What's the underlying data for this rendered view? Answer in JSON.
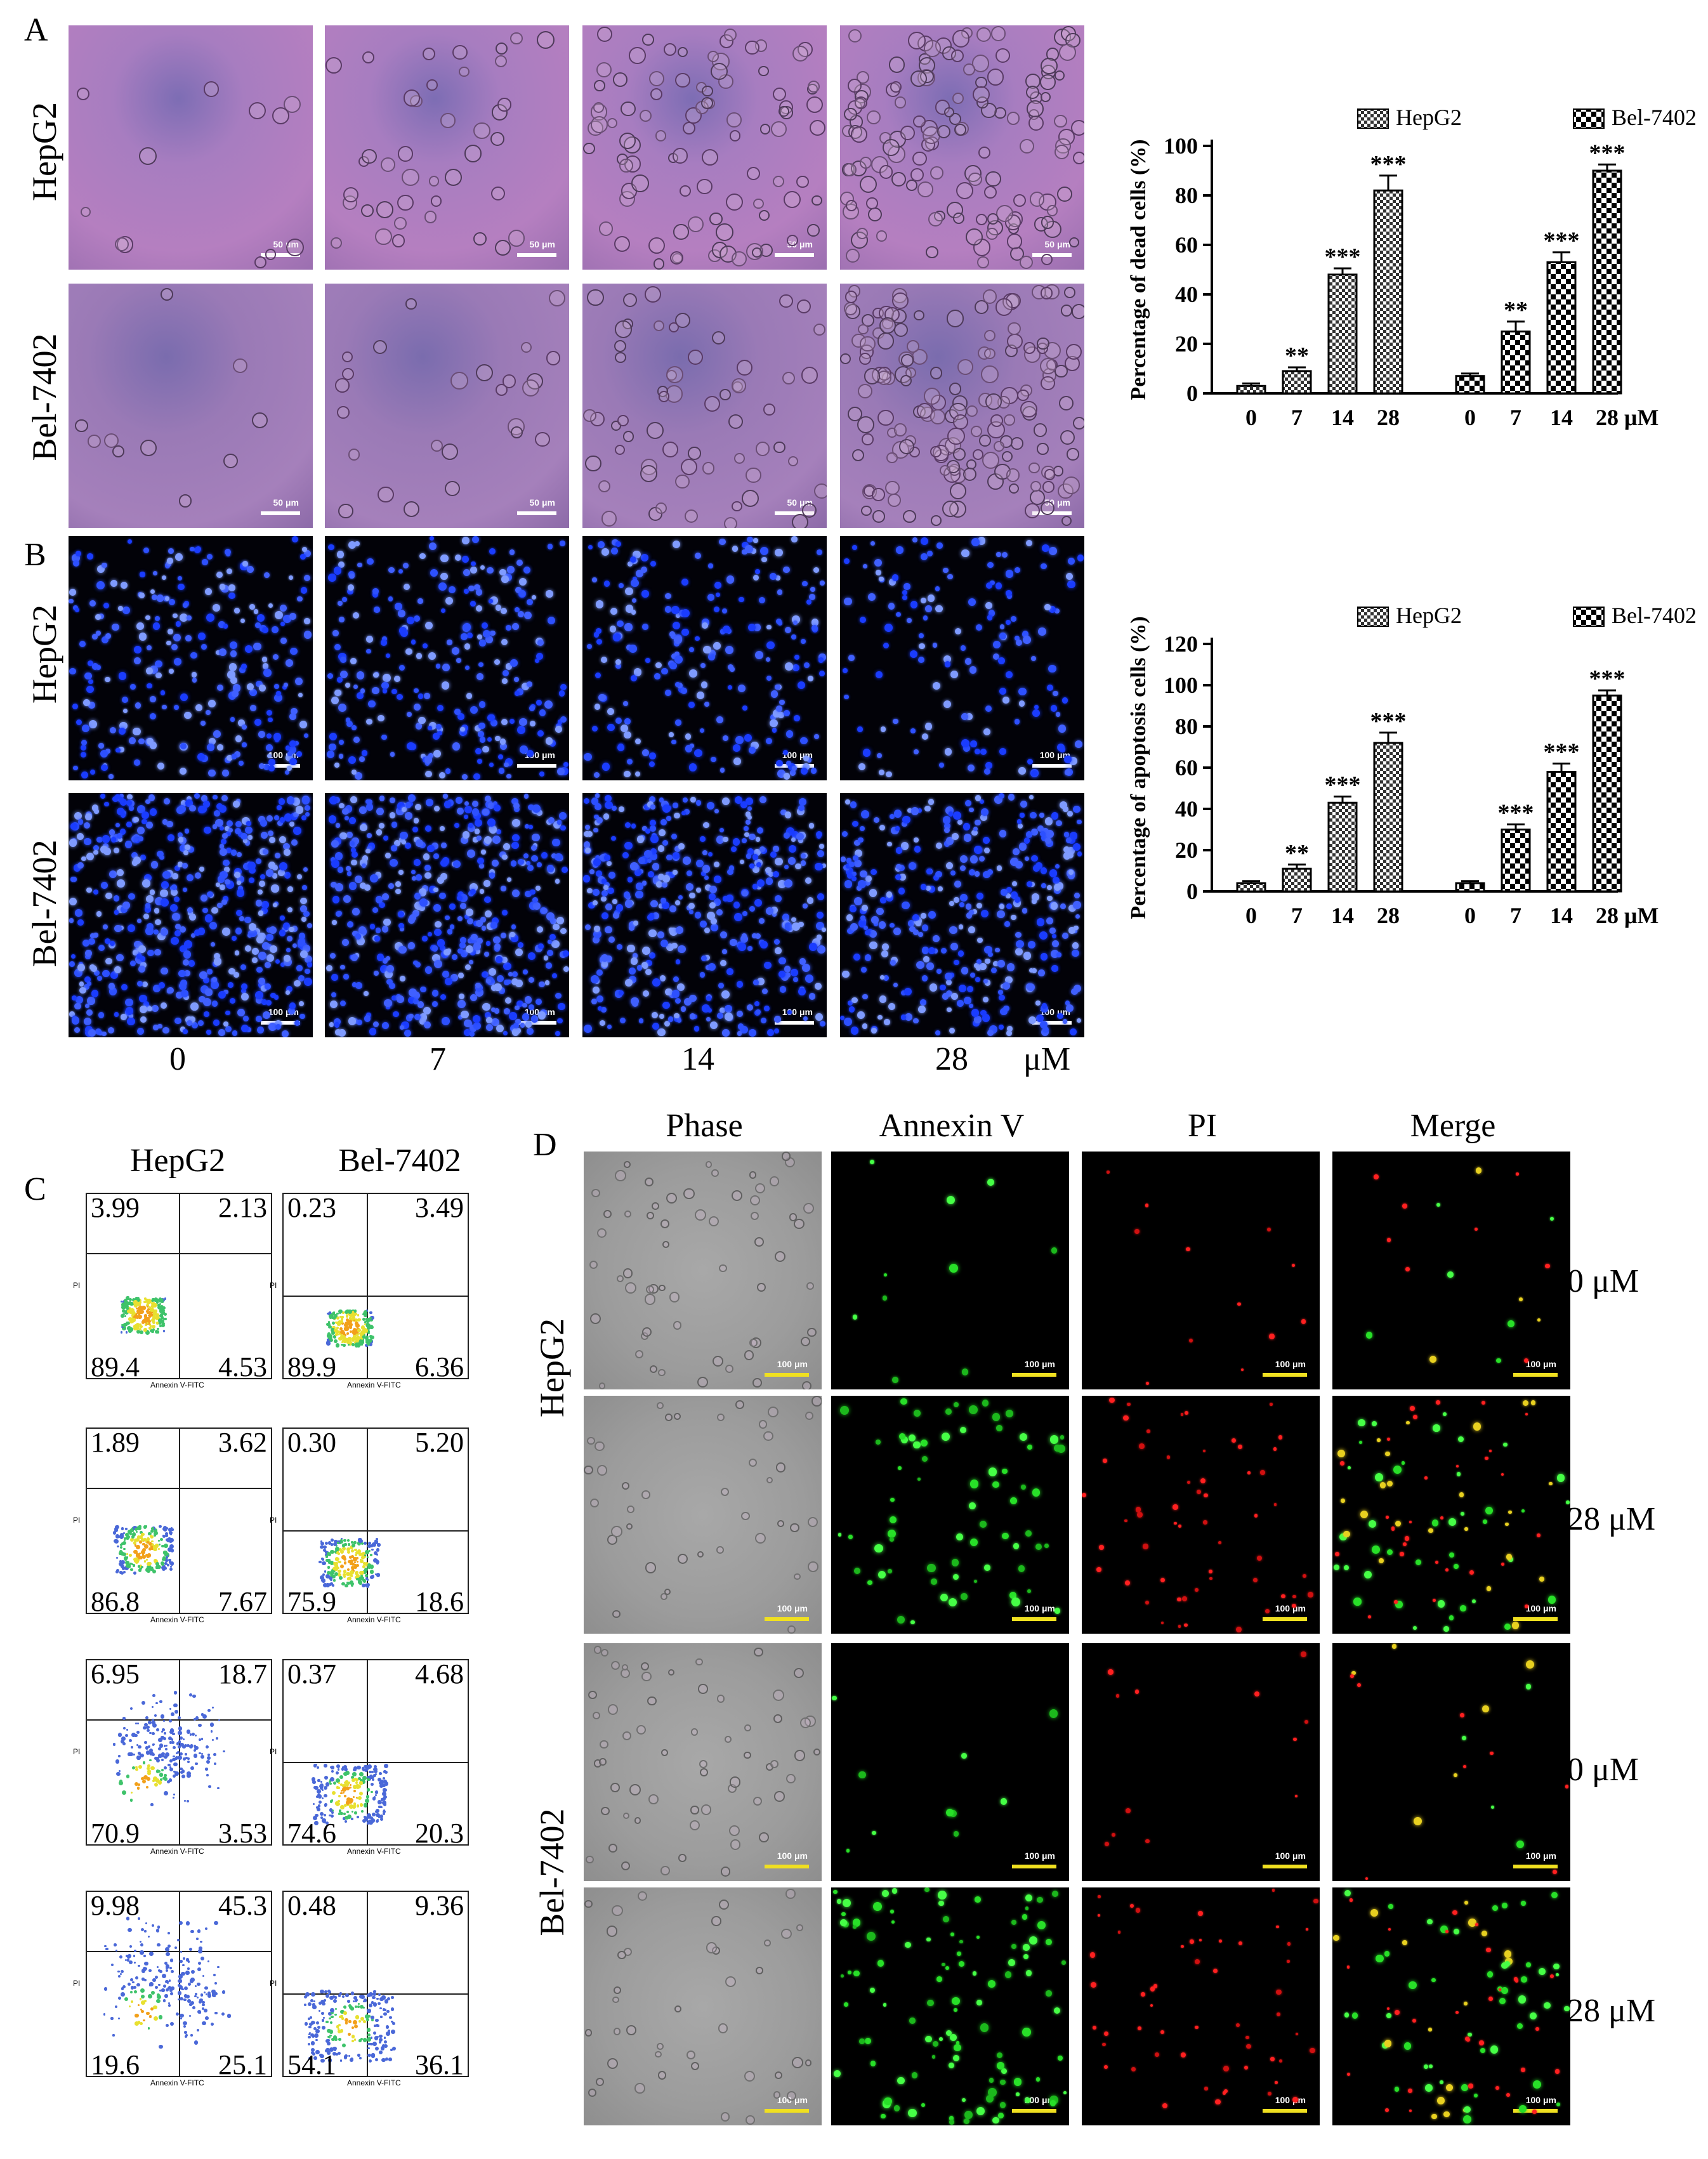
{
  "panels": {
    "A": "A",
    "B": "B",
    "C": "C",
    "D": "D"
  },
  "rows": {
    "hepg2": "HepG2",
    "bel": "Bel-7402"
  },
  "doses": [
    "0",
    "7",
    "14",
    "28"
  ],
  "dose_unit": "μM",
  "scale_A": "50 μm",
  "scale_B": "100 μm",
  "scale_D": "100 μm",
  "panel_C": {
    "columns": [
      "HepG2",
      "Bel-7402"
    ],
    "x_axis": "Annexin V-FITC",
    "y_axis": "PI",
    "quadrants": [
      {
        "hepg2": [
          "3.99",
          "2.13",
          "89.4",
          "4.53"
        ],
        "bel": [
          "0.23",
          "3.49",
          "89.9",
          "6.36"
        ]
      },
      {
        "hepg2": [
          "1.89",
          "3.62",
          "86.8",
          "7.67"
        ],
        "bel": [
          "0.30",
          "5.20",
          "75.9",
          "18.6"
        ]
      },
      {
        "hepg2": [
          "6.95",
          "18.7",
          "70.9",
          "3.53"
        ],
        "bel": [
          "0.37",
          "4.68",
          "74.6",
          "20.3"
        ]
      },
      {
        "hepg2": [
          "9.98",
          "45.3",
          "19.6",
          "25.1"
        ],
        "bel": [
          "0.48",
          "9.36",
          "54.1",
          "36.1"
        ]
      }
    ]
  },
  "panel_D": {
    "columns": [
      "Phase",
      "Annexin V",
      "PI",
      "Merge"
    ],
    "row_doses": [
      "0 μM",
      "28 μM",
      "0 μM",
      "28 μM"
    ]
  },
  "chart_data": [
    {
      "type": "bar",
      "ylabel": "Percentage of dead cells (%)",
      "ylim": [
        0,
        100
      ],
      "yticks": [
        "0",
        "20",
        "40",
        "60",
        "80",
        "100"
      ],
      "categories": [
        "0",
        "7",
        "14",
        "28"
      ],
      "unit": "μM",
      "series": [
        {
          "name": "HepG2",
          "values": [
            3,
            9,
            48,
            82
          ],
          "errors": [
            1,
            1.5,
            2.5,
            6
          ],
          "sig": [
            "",
            "**",
            "***",
            "***"
          ]
        },
        {
          "name": "Bel-7402",
          "values": [
            7,
            25,
            53,
            90
          ],
          "errors": [
            1,
            4,
            4,
            2.5
          ],
          "sig": [
            "",
            "**",
            "***",
            "***"
          ]
        }
      ]
    },
    {
      "type": "bar",
      "ylabel": "Percentage of apoptosis cells (%)",
      "ylim": [
        0,
        120
      ],
      "yticks": [
        "0",
        "20",
        "40",
        "60",
        "80",
        "100",
        "120"
      ],
      "categories": [
        "0",
        "7",
        "14",
        "28"
      ],
      "unit": "μM",
      "series": [
        {
          "name": "HepG2",
          "values": [
            4,
            11,
            43,
            72
          ],
          "errors": [
            1,
            2,
            3,
            5
          ],
          "sig": [
            "",
            "**",
            "***",
            "***"
          ]
        },
        {
          "name": "Bel-7402",
          "values": [
            4,
            30,
            58,
            95
          ],
          "errors": [
            1,
            2.5,
            4,
            2.5
          ],
          "sig": [
            "",
            "***",
            "***",
            "***"
          ]
        }
      ]
    }
  ]
}
